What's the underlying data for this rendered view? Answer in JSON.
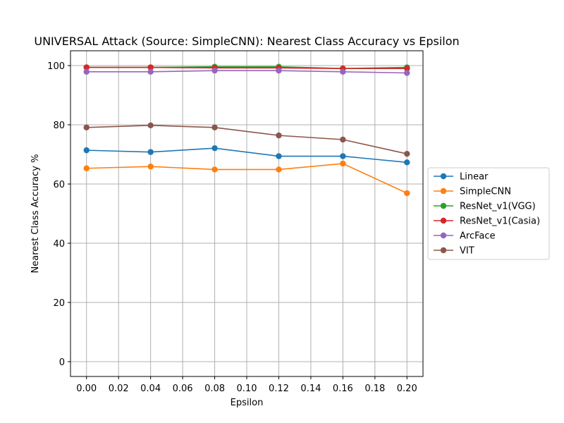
{
  "chart_data": {
    "type": "line",
    "title": "UNIVERSAL Attack (Source: SimpleCNN): Nearest Class Accuracy vs Epsilon",
    "xlabel": "Epsilon",
    "ylabel": "Nearest Class Accuracy %",
    "x": [
      0.0,
      0.04,
      0.08,
      0.12,
      0.16,
      0.2
    ],
    "xlim": [
      -0.01,
      0.21
    ],
    "ylim": [
      -5,
      105
    ],
    "xticks": [
      "0.00",
      "0.02",
      "0.04",
      "0.06",
      "0.08",
      "0.10",
      "0.12",
      "0.14",
      "0.16",
      "0.18",
      "0.20"
    ],
    "yticks": [
      "0",
      "20",
      "40",
      "60",
      "80",
      "100"
    ],
    "grid": true,
    "legend_position": "center-right-outside",
    "series": [
      {
        "name": "Linear",
        "color": "#1f77b4",
        "values": [
          71.4,
          70.8,
          72.1,
          69.4,
          69.4,
          67.3
        ]
      },
      {
        "name": "SimpleCNN",
        "color": "#ff7f0e",
        "values": [
          65.3,
          65.9,
          64.9,
          64.9,
          66.9,
          56.9
        ]
      },
      {
        "name": "ResNet_v1(VGG)",
        "color": "#2ca02c",
        "values": [
          99.4,
          99.4,
          99.6,
          99.6,
          99.0,
          99.4
        ]
      },
      {
        "name": "ResNet_v1(Casia)",
        "color": "#d62728",
        "values": [
          99.4,
          99.4,
          99.2,
          99.2,
          99.0,
          99.0
        ]
      },
      {
        "name": "ArcFace",
        "color": "#9467bd",
        "values": [
          97.9,
          97.9,
          98.3,
          98.3,
          97.9,
          97.5
        ]
      },
      {
        "name": "VIT",
        "color": "#8c564b",
        "values": [
          79.1,
          79.8,
          79.1,
          76.4,
          75.0,
          70.2
        ]
      }
    ]
  }
}
